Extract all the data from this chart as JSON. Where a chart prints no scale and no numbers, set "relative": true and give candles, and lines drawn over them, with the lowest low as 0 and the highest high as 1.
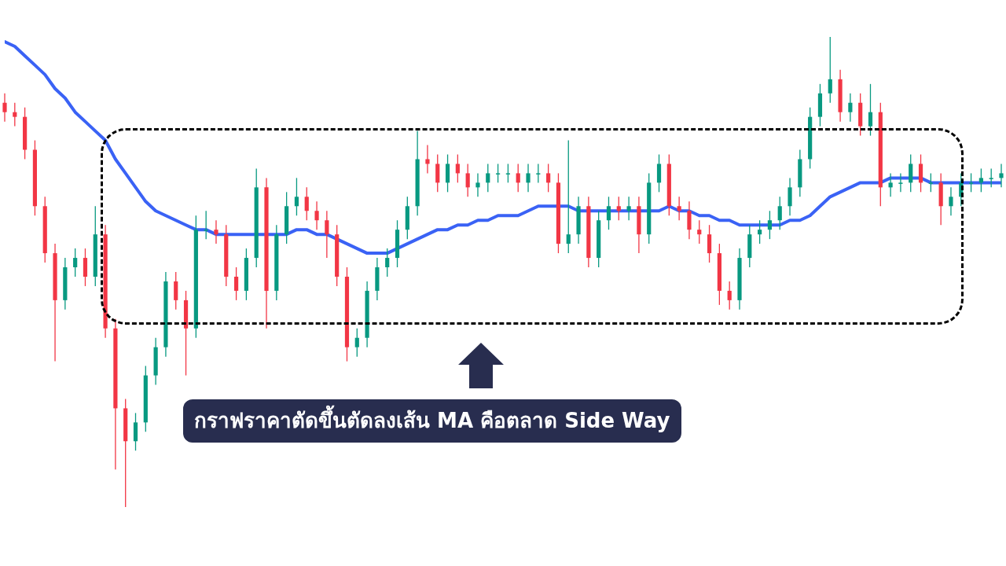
{
  "chart_data": {
    "type": "candlestick",
    "relative": true,
    "legend": false,
    "annotations": [
      "กราฟราคาตัดขึ้นตัดลงเส้น MA คือตลาด Side Way"
    ],
    "categories": [
      null,
      null,
      null,
      null,
      null,
      null,
      null,
      null,
      null,
      null,
      null,
      null,
      null,
      null,
      null,
      null,
      null,
      null,
      null,
      null,
      null,
      null,
      null,
      null,
      null,
      null,
      null,
      null,
      null,
      null,
      null,
      null,
      null,
      null,
      null,
      null,
      null,
      null,
      null,
      null,
      null,
      null,
      null,
      null,
      null,
      null,
      null,
      null,
      null,
      null,
      null,
      null,
      null,
      null,
      null,
      null,
      null,
      null,
      null,
      null,
      null,
      null,
      null,
      null,
      null,
      null,
      null,
      null,
      null,
      null,
      null,
      null,
      null,
      null,
      null,
      null,
      null,
      null,
      null,
      null,
      null,
      null,
      null,
      null,
      null,
      null,
      null,
      null,
      null,
      null,
      null,
      null,
      null,
      null,
      null,
      null,
      null,
      null,
      null,
      null
    ],
    "ohlc": [
      [
        0.86,
        0.88,
        0.82,
        0.84
      ],
      [
        0.84,
        0.86,
        0.81,
        0.83
      ],
      [
        0.83,
        0.85,
        0.74,
        0.76
      ],
      [
        0.76,
        0.78,
        0.62,
        0.64
      ],
      [
        0.64,
        0.66,
        0.52,
        0.54
      ],
      [
        0.54,
        0.56,
        0.31,
        0.44
      ],
      [
        0.44,
        0.53,
        0.42,
        0.51
      ],
      [
        0.51,
        0.55,
        0.49,
        0.53
      ],
      [
        0.53,
        0.55,
        0.47,
        0.49
      ],
      [
        0.49,
        0.64,
        0.47,
        0.58
      ],
      [
        0.58,
        0.6,
        0.36,
        0.38
      ],
      [
        0.38,
        0.4,
        0.08,
        0.21
      ],
      [
        0.21,
        0.23,
        0.0,
        0.14
      ],
      [
        0.14,
        0.2,
        0.12,
        0.18
      ],
      [
        0.18,
        0.3,
        0.16,
        0.28
      ],
      [
        0.28,
        0.36,
        0.26,
        0.34
      ],
      [
        0.34,
        0.5,
        0.32,
        0.48
      ],
      [
        0.48,
        0.5,
        0.42,
        0.44
      ],
      [
        0.44,
        0.46,
        0.28,
        0.38
      ],
      [
        0.38,
        0.62,
        0.36,
        0.59
      ],
      [
        0.59,
        0.63,
        0.57,
        0.59
      ],
      [
        0.59,
        0.61,
        0.56,
        0.58
      ],
      [
        0.58,
        0.6,
        0.47,
        0.49
      ],
      [
        0.49,
        0.51,
        0.44,
        0.46
      ],
      [
        0.46,
        0.55,
        0.44,
        0.53
      ],
      [
        0.53,
        0.72,
        0.51,
        0.68
      ],
      [
        0.68,
        0.7,
        0.38,
        0.46
      ],
      [
        0.46,
        0.6,
        0.44,
        0.58
      ],
      [
        0.58,
        0.67,
        0.56,
        0.64
      ],
      [
        0.64,
        0.7,
        0.62,
        0.66
      ],
      [
        0.66,
        0.68,
        0.61,
        0.63
      ],
      [
        0.63,
        0.65,
        0.59,
        0.61
      ],
      [
        0.61,
        0.63,
        0.53,
        0.58
      ],
      [
        0.58,
        0.6,
        0.47,
        0.49
      ],
      [
        0.49,
        0.51,
        0.31,
        0.34
      ],
      [
        0.34,
        0.38,
        0.32,
        0.36
      ],
      [
        0.36,
        0.48,
        0.34,
        0.46
      ],
      [
        0.46,
        0.53,
        0.44,
        0.51
      ],
      [
        0.51,
        0.55,
        0.49,
        0.53
      ],
      [
        0.53,
        0.61,
        0.51,
        0.59
      ],
      [
        0.59,
        0.66,
        0.57,
        0.64
      ],
      [
        0.64,
        0.8,
        0.62,
        0.74
      ],
      [
        0.74,
        0.77,
        0.71,
        0.73
      ],
      [
        0.73,
        0.75,
        0.67,
        0.69
      ],
      [
        0.69,
        0.75,
        0.67,
        0.73
      ],
      [
        0.73,
        0.75,
        0.69,
        0.71
      ],
      [
        0.71,
        0.73,
        0.66,
        0.68
      ],
      [
        0.68,
        0.71,
        0.66,
        0.69
      ],
      [
        0.69,
        0.73,
        0.67,
        0.71
      ],
      [
        0.71,
        0.73,
        0.69,
        0.71
      ],
      [
        0.71,
        0.73,
        0.69,
        0.71
      ],
      [
        0.71,
        0.73,
        0.67,
        0.69
      ],
      [
        0.69,
        0.73,
        0.67,
        0.71
      ],
      [
        0.71,
        0.73,
        0.69,
        0.71
      ],
      [
        0.71,
        0.73,
        0.67,
        0.69
      ],
      [
        0.69,
        0.71,
        0.54,
        0.56
      ],
      [
        0.56,
        0.78,
        0.54,
        0.58
      ],
      [
        0.58,
        0.66,
        0.56,
        0.64
      ],
      [
        0.64,
        0.66,
        0.51,
        0.53
      ],
      [
        0.53,
        0.63,
        0.51,
        0.61
      ],
      [
        0.61,
        0.66,
        0.59,
        0.64
      ],
      [
        0.64,
        0.66,
        0.61,
        0.63
      ],
      [
        0.63,
        0.66,
        0.61,
        0.64
      ],
      [
        0.64,
        0.66,
        0.54,
        0.58
      ],
      [
        0.58,
        0.71,
        0.56,
        0.69
      ],
      [
        0.69,
        0.75,
        0.67,
        0.73
      ],
      [
        0.73,
        0.75,
        0.62,
        0.64
      ],
      [
        0.64,
        0.66,
        0.61,
        0.63
      ],
      [
        0.63,
        0.65,
        0.57,
        0.59
      ],
      [
        0.59,
        0.61,
        0.56,
        0.58
      ],
      [
        0.58,
        0.6,
        0.52,
        0.54
      ],
      [
        0.54,
        0.56,
        0.43,
        0.46
      ],
      [
        0.46,
        0.48,
        0.42,
        0.44
      ],
      [
        0.44,
        0.55,
        0.42,
        0.53
      ],
      [
        0.53,
        0.6,
        0.51,
        0.58
      ],
      [
        0.58,
        0.61,
        0.56,
        0.59
      ],
      [
        0.59,
        0.63,
        0.57,
        0.61
      ],
      [
        0.61,
        0.66,
        0.59,
        0.64
      ],
      [
        0.64,
        0.7,
        0.62,
        0.68
      ],
      [
        0.68,
        0.76,
        0.66,
        0.74
      ],
      [
        0.74,
        0.85,
        0.72,
        0.83
      ],
      [
        0.83,
        0.9,
        0.81,
        0.88
      ],
      [
        0.88,
        1.0,
        0.86,
        0.91
      ],
      [
        0.91,
        0.93,
        0.82,
        0.84
      ],
      [
        0.84,
        0.88,
        0.82,
        0.86
      ],
      [
        0.86,
        0.88,
        0.79,
        0.81
      ],
      [
        0.81,
        0.9,
        0.79,
        0.84
      ],
      [
        0.84,
        0.86,
        0.64,
        0.68
      ],
      [
        0.68,
        0.71,
        0.66,
        0.69
      ],
      [
        0.69,
        0.71,
        0.67,
        0.69
      ],
      [
        0.69,
        0.75,
        0.67,
        0.73
      ],
      [
        0.73,
        0.75,
        0.67,
        0.69
      ],
      [
        0.69,
        0.71,
        0.67,
        0.69
      ],
      [
        0.69,
        0.71,
        0.6,
        0.64
      ],
      [
        0.64,
        0.68,
        0.62,
        0.66
      ],
      [
        0.66,
        0.71,
        0.64,
        0.69
      ],
      [
        0.69,
        0.71,
        0.67,
        0.69
      ],
      [
        0.69,
        0.72,
        0.67,
        0.7
      ],
      [
        0.7,
        0.72,
        0.68,
        0.7
      ],
      [
        0.7,
        0.73,
        0.68,
        0.71
      ]
    ],
    "colors": [
      "#f23645",
      "#f23645",
      "#f23645",
      "#f23645",
      "#f23645",
      "#f23645",
      "#089981",
      "#089981",
      "#f23645",
      "#089981",
      "#f23645",
      "#f23645",
      "#f23645",
      "#089981",
      "#089981",
      "#089981",
      "#089981",
      "#f23645",
      "#f23645",
      "#089981",
      "#089981",
      "#f23645",
      "#f23645",
      "#f23645",
      "#089981",
      "#089981",
      "#f23645",
      "#089981",
      "#089981",
      "#089981",
      "#f23645",
      "#f23645",
      "#f23645",
      "#f23645",
      "#f23645",
      "#089981",
      "#089981",
      "#089981",
      "#089981",
      "#089981",
      "#089981",
      "#089981",
      "#f23645",
      "#f23645",
      "#089981",
      "#f23645",
      "#f23645",
      "#089981",
      "#089981",
      "#089981",
      "#089981",
      "#f23645",
      "#089981",
      "#089981",
      "#f23645",
      "#f23645",
      "#089981",
      "#089981",
      "#f23645",
      "#089981",
      "#089981",
      "#f23645",
      "#089981",
      "#f23645",
      "#089981",
      "#089981",
      "#f23645",
      "#f23645",
      "#f23645",
      "#f23645",
      "#f23645",
      "#f23645",
      "#f23645",
      "#089981",
      "#089981",
      "#089981",
      "#089981",
      "#089981",
      "#089981",
      "#089981",
      "#089981",
      "#089981",
      "#089981",
      "#f23645",
      "#089981",
      "#f23645",
      "#089981",
      "#f23645",
      "#089981",
      "#089981",
      "#089981",
      "#f23645",
      "#089981",
      "#f23645",
      "#089981",
      "#089981",
      "#089981",
      "#089981",
      "#089981",
      "#089981"
    ],
    "series": [
      {
        "type": "line",
        "color": "#3a62f5",
        "marker": "none",
        "values": [
          0.99,
          0.98,
          0.96,
          0.94,
          0.92,
          0.89,
          0.87,
          0.84,
          0.82,
          0.8,
          0.78,
          0.74,
          0.71,
          0.68,
          0.65,
          0.63,
          0.62,
          0.61,
          0.6,
          0.59,
          0.59,
          0.58,
          0.58,
          0.58,
          0.58,
          0.58,
          0.58,
          0.58,
          0.58,
          0.59,
          0.59,
          0.58,
          0.58,
          0.57,
          0.56,
          0.55,
          0.54,
          0.54,
          0.54,
          0.55,
          0.56,
          0.57,
          0.58,
          0.59,
          0.59,
          0.6,
          0.6,
          0.61,
          0.61,
          0.62,
          0.62,
          0.62,
          0.63,
          0.64,
          0.64,
          0.64,
          0.64,
          0.63,
          0.63,
          0.63,
          0.63,
          0.63,
          0.63,
          0.63,
          0.63,
          0.63,
          0.64,
          0.63,
          0.63,
          0.62,
          0.62,
          0.61,
          0.61,
          0.6,
          0.6,
          0.6,
          0.6,
          0.6,
          0.61,
          0.61,
          0.62,
          0.64,
          0.66,
          0.67,
          0.68,
          0.69,
          0.69,
          0.69,
          0.7,
          0.7,
          0.7,
          0.7,
          0.69,
          0.69,
          0.69,
          0.69,
          0.69,
          0.69,
          0.69,
          0.69
        ]
      }
    ]
  }
}
